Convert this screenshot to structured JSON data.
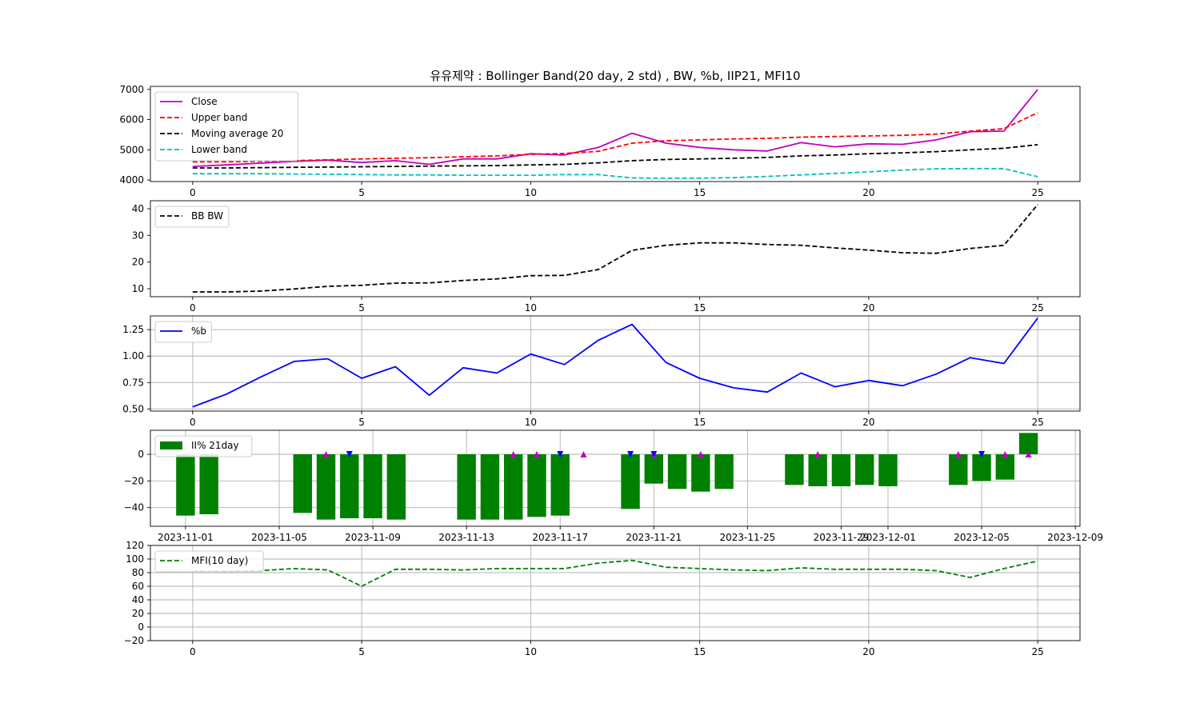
{
  "title": "유유제약 : Bollinger Band(20 day, 2 std) , BW, %b, IIP21, MFI10",
  "colors": {
    "close": "#bf00bf",
    "upper": "#ff0000",
    "ma": "#000000",
    "lower": "#00bfbf",
    "bw": "#000000",
    "pb": "#0000ff",
    "iip": "#008000",
    "buy_marker": "#bf00bf",
    "sell_marker": "#0000ff",
    "mfi": "#008000"
  },
  "chart_data": [
    {
      "type": "line",
      "panel": "bollinger",
      "x": [
        0,
        1,
        2,
        3,
        4,
        5,
        6,
        7,
        8,
        9,
        10,
        11,
        12,
        13,
        14,
        15,
        16,
        17,
        18,
        19,
        20,
        21,
        22,
        23,
        24,
        25
      ],
      "xlim": [
        -1.25,
        26.25
      ],
      "xticks": [
        0,
        5,
        10,
        15,
        20,
        25
      ],
      "ylim": [
        3950,
        7100
      ],
      "yticks": [
        4000,
        5000,
        6000,
        7000
      ],
      "legend_position": "upper-left",
      "series": [
        {
          "name": "Close",
          "style": "solid",
          "values": [
            4450,
            4500,
            4560,
            4620,
            4660,
            4580,
            4640,
            4520,
            4700,
            4700,
            4870,
            4830,
            5080,
            5550,
            5220,
            5080,
            5000,
            4960,
            5240,
            5100,
            5200,
            5180,
            5330,
            5600,
            5620,
            7000
          ]
        },
        {
          "name": "Upper band",
          "style": "dashed",
          "values": [
            4600,
            4600,
            4620,
            4640,
            4670,
            4700,
            4720,
            4740,
            4770,
            4800,
            4850,
            4880,
            4950,
            5220,
            5300,
            5330,
            5360,
            5380,
            5420,
            5440,
            5460,
            5480,
            5520,
            5620,
            5700,
            6230
          ]
        },
        {
          "name": "Moving average 20",
          "style": "dashed",
          "values": [
            4400,
            4400,
            4410,
            4420,
            4430,
            4440,
            4450,
            4460,
            4470,
            4480,
            4500,
            4520,
            4570,
            4640,
            4680,
            4700,
            4720,
            4750,
            4800,
            4830,
            4870,
            4900,
            4940,
            5000,
            5050,
            5170
          ]
        },
        {
          "name": "Lower band",
          "style": "dashed",
          "values": [
            4210,
            4210,
            4210,
            4200,
            4190,
            4180,
            4170,
            4170,
            4160,
            4160,
            4160,
            4180,
            4180,
            4070,
            4060,
            4060,
            4080,
            4120,
            4170,
            4220,
            4270,
            4330,
            4370,
            4380,
            4380,
            4110
          ]
        }
      ]
    },
    {
      "type": "line",
      "panel": "bandwidth",
      "x": [
        0,
        1,
        2,
        3,
        4,
        5,
        6,
        7,
        8,
        9,
        10,
        11,
        12,
        13,
        14,
        15,
        16,
        17,
        18,
        19,
        20,
        21,
        22,
        23,
        24,
        25
      ],
      "xlim": [
        -1.25,
        26.25
      ],
      "xticks": [
        0,
        5,
        10,
        15,
        20,
        25
      ],
      "ylim": [
        7,
        43
      ],
      "yticks": [
        10,
        20,
        30,
        40
      ],
      "legend_position": "upper-left",
      "series": [
        {
          "name": "BB BW",
          "style": "dashed",
          "values": [
            8.8,
            8.8,
            9.1,
            9.9,
            10.9,
            11.3,
            12.1,
            12.2,
            13.1,
            13.7,
            14.9,
            15.0,
            17.2,
            24.4,
            26.3,
            27.2,
            27.2,
            26.6,
            26.3,
            25.3,
            24.5,
            23.5,
            23.3,
            25.1,
            26.3,
            41.6
          ]
        }
      ]
    },
    {
      "type": "line",
      "panel": "percent_b",
      "x": [
        0,
        1,
        2,
        3,
        4,
        5,
        6,
        7,
        8,
        9,
        10,
        11,
        12,
        13,
        14,
        15,
        16,
        17,
        18,
        19,
        20,
        21,
        22,
        23,
        24,
        25
      ],
      "xlim": [
        -1.25,
        26.25
      ],
      "xticks": [
        0,
        5,
        10,
        15,
        20,
        25
      ],
      "ylim": [
        0.48,
        1.38
      ],
      "yticks": [
        0.5,
        0.75,
        1.0,
        1.25
      ],
      "yticklabels": [
        "0.50",
        "0.75",
        "1.00",
        "1.25"
      ],
      "grid": true,
      "legend_position": "upper-left",
      "series": [
        {
          "name": "%b",
          "style": "solid",
          "values": [
            0.52,
            0.64,
            0.8,
            0.95,
            0.975,
            0.79,
            0.9,
            0.63,
            0.89,
            0.84,
            1.02,
            0.92,
            1.15,
            1.3,
            0.94,
            0.79,
            0.7,
            0.66,
            0.84,
            0.71,
            0.77,
            0.72,
            0.83,
            0.985,
            0.93,
            1.36
          ]
        }
      ]
    },
    {
      "type": "bar",
      "panel": "iip21",
      "x_dates": [
        "2023-11-01",
        "2023-11-02",
        "2023-11-06",
        "2023-11-07",
        "2023-11-08",
        "2023-11-09",
        "2023-11-10",
        "2023-11-13",
        "2023-11-14",
        "2023-11-15",
        "2023-11-16",
        "2023-11-17",
        "2023-11-20",
        "2023-11-21",
        "2023-11-22",
        "2023-11-23",
        "2023-11-24",
        "2023-11-27",
        "2023-11-28",
        "2023-11-29",
        "2023-11-30",
        "2023-12-01",
        "2023-12-04",
        "2023-12-05",
        "2023-12-06",
        "2023-12-07"
      ],
      "x_day_offsets": [
        0,
        1,
        5,
        6,
        7,
        8,
        9,
        12,
        13,
        14,
        15,
        16,
        19,
        20,
        21,
        22,
        23,
        26,
        27,
        28,
        29,
        30,
        33,
        34,
        35,
        36
      ],
      "values": [
        -46,
        -45,
        -44,
        -49,
        -48,
        -48,
        -49,
        -49,
        -49,
        -49,
        -47,
        -46,
        -41,
        -22,
        -26,
        -28,
        -26,
        -23,
        -24,
        -24,
        -23,
        -24,
        -23,
        -20,
        -19,
        16
      ],
      "buy_markers_days": [
        6,
        14,
        15,
        17,
        20,
        22,
        27,
        33,
        35,
        36
      ],
      "sell_markers_days": [
        7,
        16,
        19,
        20,
        34
      ],
      "xticks": [
        "2023-11-01",
        "2023-11-05",
        "2023-11-09",
        "2023-11-13",
        "2023-11-17",
        "2023-11-21",
        "2023-11-25",
        "2023-11-29",
        "2023-12-01",
        "2023-12-05",
        "2023-12-09"
      ],
      "xtick_day_offsets": [
        0,
        4,
        8,
        12,
        16,
        20,
        24,
        28,
        30,
        34,
        38
      ],
      "xlim_days": [
        -1.5,
        38.2
      ],
      "ylim": [
        -54,
        18
      ],
      "yticks": [
        0,
        -20,
        -40
      ],
      "yticklabels": [
        "0",
        "−20",
        "−40"
      ],
      "grid": true,
      "legend_position": "upper-left",
      "series": [
        {
          "name": "II% 21day"
        }
      ]
    },
    {
      "type": "line",
      "panel": "mfi",
      "x": [
        0,
        1,
        2,
        3,
        4,
        5,
        6,
        7,
        8,
        9,
        10,
        11,
        12,
        13,
        14,
        15,
        16,
        17,
        18,
        19,
        20,
        21,
        22,
        23,
        24,
        25
      ],
      "xlim": [
        -1.25,
        26.25
      ],
      "xticks": [
        0,
        5,
        10,
        15,
        20,
        25
      ],
      "ylim": [
        -20,
        120
      ],
      "yticks": [
        -20,
        0,
        20,
        40,
        60,
        80,
        100,
        120
      ],
      "yticklabels": [
        "−20",
        "0",
        "20",
        "40",
        "60",
        "80",
        "100",
        "120"
      ],
      "grid": true,
      "legend_position": "upper-left",
      "series": [
        {
          "name": "MFI(10 day)",
          "style": "dashed",
          "values": [
            82,
            82,
            83,
            86,
            84,
            60,
            85,
            85,
            84,
            86,
            86,
            86,
            94,
            98,
            88,
            86,
            84,
            83,
            87,
            85,
            85,
            85,
            83,
            73,
            86,
            97
          ]
        }
      ]
    }
  ]
}
